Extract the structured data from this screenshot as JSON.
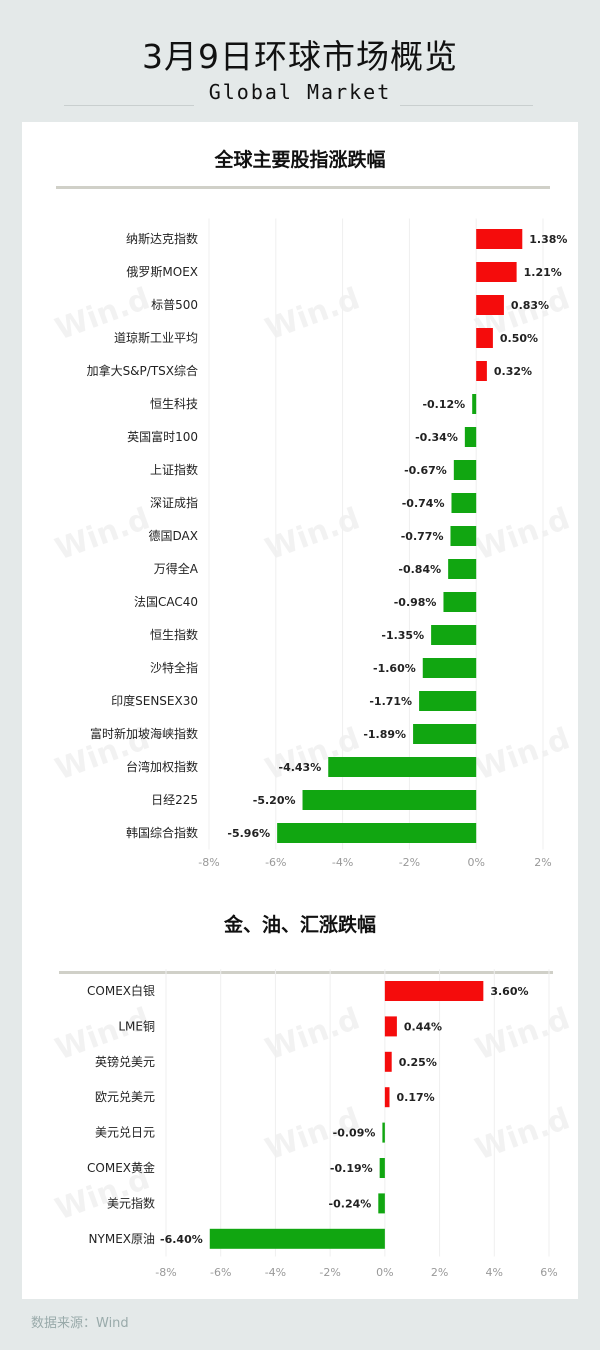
{
  "header": {
    "title": "3月9日环球市场概览",
    "subtitle": "Global Market"
  },
  "footer": {
    "source": "数据来源：Wind"
  },
  "watermark": "Win.d",
  "colors": {
    "up": "#f50c0c",
    "down": "#11a611",
    "grid": "#efefef",
    "tick": "#999999"
  },
  "chart_data": [
    {
      "type": "bar",
      "orientation": "horizontal",
      "title": "全球主要股指涨跌幅",
      "unit": "%",
      "categories": [
        "纳斯达克指数",
        "俄罗斯MOEX",
        "标普500",
        "道琼斯工业平均",
        "加拿大S&P/TSX综合",
        "恒生科技",
        "英国富时100",
        "上证指数",
        "深证成指",
        "德国DAX",
        "万得全A",
        "法国CAC40",
        "恒生指数",
        "沙特全指",
        "印度SENSEX30",
        "富时新加坡海峡指数",
        "台湾加权指数",
        "日经225",
        "韩国综合指数"
      ],
      "values": [
        1.38,
        1.21,
        0.83,
        0.5,
        0.32,
        -0.12,
        -0.34,
        -0.67,
        -0.74,
        -0.77,
        -0.84,
        -0.98,
        -1.35,
        -1.6,
        -1.71,
        -1.89,
        -4.43,
        -5.2,
        -5.96
      ],
      "value_labels": [
        "1.38%",
        "1.21%",
        "0.83%",
        "0.50%",
        "0.32%",
        "-0.12%",
        "-0.34%",
        "-0.67%",
        "-0.74%",
        "-0.77%",
        "-0.84%",
        "-0.98%",
        "-1.35%",
        "-1.60%",
        "-1.71%",
        "-1.89%",
        "-4.43%",
        "-5.20%",
        "-5.96%"
      ],
      "xlim": [
        -8,
        2
      ],
      "ticks": [
        "-8%",
        "-6%",
        "-4%",
        "-2%",
        "0%",
        "2%"
      ],
      "grid": true
    },
    {
      "type": "bar",
      "orientation": "horizontal",
      "title": "金、油、汇涨跌幅",
      "unit": "%",
      "categories": [
        "COMEX白银",
        "LME铜",
        "英镑兑美元",
        "欧元兑美元",
        "美元兑日元",
        "COMEX黄金",
        "美元指数",
        "NYMEX原油"
      ],
      "values": [
        3.6,
        0.44,
        0.25,
        0.17,
        -0.09,
        -0.19,
        -0.24,
        -6.4
      ],
      "value_labels": [
        "3.60%",
        "0.44%",
        "0.25%",
        "0.17%",
        "-0.09%",
        "-0.19%",
        "-0.24%",
        "-6.40%"
      ],
      "xlim": [
        -8,
        6
      ],
      "ticks": [
        "-8%",
        "-6%",
        "-4%",
        "-2%",
        "0%",
        "2%",
        "4%",
        "6%"
      ],
      "grid": true
    }
  ]
}
